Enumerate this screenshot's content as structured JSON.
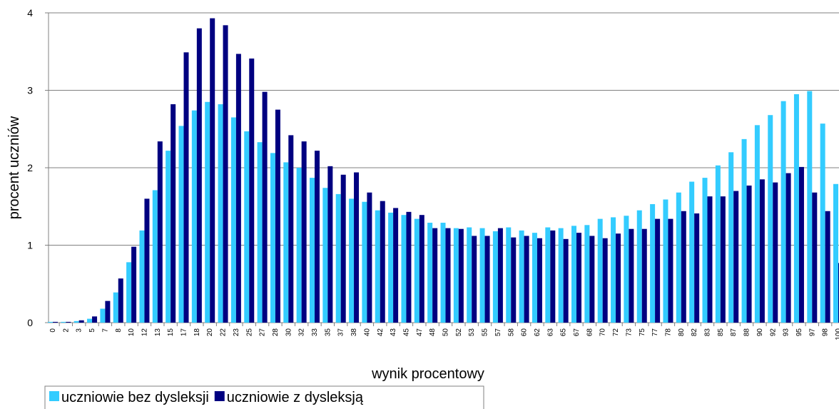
{
  "chart_data": {
    "type": "bar",
    "xlabel": "wynik procentowy",
    "ylabel": "procent uczniów",
    "categories": [
      "0",
      "2",
      "3",
      "5",
      "7",
      "8",
      "10",
      "12",
      "13",
      "15",
      "17",
      "18",
      "20",
      "22",
      "23",
      "25",
      "27",
      "28",
      "30",
      "32",
      "33",
      "35",
      "37",
      "38",
      "40",
      "42",
      "43",
      "45",
      "47",
      "48",
      "50",
      "52",
      "53",
      "55",
      "57",
      "58",
      "60",
      "62",
      "63",
      "65",
      "67",
      "68",
      "70",
      "72",
      "73",
      "75",
      "77",
      "78",
      "80",
      "82",
      "83",
      "85",
      "87",
      "88",
      "90",
      "92",
      "93",
      "95",
      "97",
      "98",
      "100"
    ],
    "series": [
      {
        "name": "uczniowie bez dysleksji",
        "color": "#33ccff",
        "values": [
          0.01,
          0.01,
          0.02,
          0.05,
          0.18,
          0.39,
          0.78,
          1.19,
          1.71,
          2.22,
          2.54,
          2.74,
          2.85,
          2.82,
          2.65,
          2.47,
          2.33,
          2.19,
          2.07,
          2.0,
          1.87,
          1.74,
          1.66,
          1.6,
          1.56,
          1.45,
          1.42,
          1.39,
          1.34,
          1.29,
          1.29,
          1.22,
          1.23,
          1.22,
          1.18,
          1.23,
          1.19,
          1.16,
          1.23,
          1.22,
          1.25,
          1.26,
          1.34,
          1.36,
          1.38,
          1.45,
          1.53,
          1.59,
          1.68,
          1.82,
          1.87,
          2.03,
          2.2,
          2.37,
          2.55,
          2.68,
          2.86,
          2.95,
          2.99,
          2.57,
          1.79
        ]
      },
      {
        "name": "uczniowie z dysleksją",
        "color": "#000080",
        "values": [
          0.01,
          0.01,
          0.03,
          0.08,
          0.28,
          0.57,
          0.98,
          1.6,
          2.34,
          2.82,
          3.49,
          3.8,
          3.93,
          3.84,
          3.47,
          3.41,
          2.98,
          2.75,
          2.42,
          2.34,
          2.22,
          2.02,
          1.91,
          1.94,
          1.68,
          1.57,
          1.48,
          1.43,
          1.39,
          1.22,
          1.22,
          1.21,
          1.12,
          1.12,
          1.22,
          1.1,
          1.12,
          1.09,
          1.19,
          1.08,
          1.16,
          1.12,
          1.09,
          1.15,
          1.21,
          1.21,
          1.34,
          1.34,
          1.44,
          1.41,
          1.63,
          1.63,
          1.7,
          1.77,
          1.85,
          1.81,
          1.93,
          2.01,
          1.68,
          1.44,
          0.77
        ]
      }
    ],
    "ylim": [
      0,
      4
    ],
    "yticks": [
      0,
      1,
      2,
      3,
      4
    ],
    "grid": true,
    "legend": "bottom-left"
  }
}
